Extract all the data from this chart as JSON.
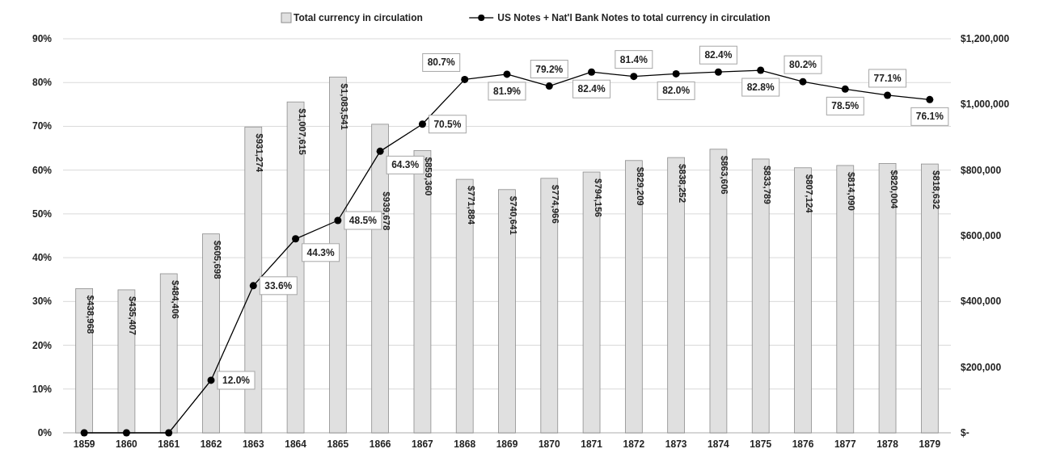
{
  "chart_data": {
    "type": "bar",
    "categories": [
      "1859",
      "1860",
      "1861",
      "1862",
      "1863",
      "1864",
      "1865",
      "1866",
      "1867",
      "1868",
      "1869",
      "1870",
      "1871",
      "1872",
      "1873",
      "1874",
      "1875",
      "1876",
      "1877",
      "1878",
      "1879"
    ],
    "series": [
      {
        "name": "Total currency in circulation",
        "axis": "y2",
        "color": "#e0e0e0",
        "values": [
          438968,
          435407,
          484406,
          605698,
          931274,
          1007615,
          1083541,
          939678,
          859360,
          771884,
          740641,
          774966,
          794156,
          829209,
          838252,
          863606,
          833789,
          807124,
          814090,
          820004,
          818632
        ],
        "value_labels": [
          "$438,968",
          "$435,407",
          "$484,406",
          "$605,698",
          "$931,274",
          "$1,007,615",
          "$1,083,541",
          "$939,678",
          "$859,360",
          "$771,884",
          "$740,641",
          "$774,966",
          "$794,156",
          "$829,209",
          "$838,252",
          "$863,606",
          "$833,789",
          "$807,124",
          "$814,090",
          "$820,004",
          "$818,632"
        ]
      },
      {
        "name": "US Notes + Nat'l Bank Notes to total currency in circulation",
        "type": "line",
        "axis": "y",
        "color": "#000000",
        "marker": "circle",
        "values": [
          0,
          0,
          0,
          12.0,
          33.6,
          44.3,
          48.5,
          64.3,
          70.5,
          80.7,
          81.9,
          79.2,
          82.4,
          81.4,
          82.0,
          82.4,
          82.8,
          80.2,
          78.5,
          77.1,
          76.1
        ],
        "value_labels": [
          null,
          null,
          null,
          "12.0%",
          "33.6%",
          "44.3%",
          "48.5%",
          "64.3%",
          "70.5%",
          "80.7%",
          "81.9%",
          "79.2%",
          "82.4%",
          "81.4%",
          "82.0%",
          "82.4%",
          "82.8%",
          "80.2%",
          "78.5%",
          "77.1%",
          "76.1%"
        ]
      }
    ],
    "ylim": [
      0,
      90
    ],
    "yticks": [
      {
        "value": 0,
        "label": "0%"
      },
      {
        "value": 10,
        "label": "10%"
      },
      {
        "value": 20,
        "label": "20%"
      },
      {
        "value": 30,
        "label": "30%"
      },
      {
        "value": 40,
        "label": "40%"
      },
      {
        "value": 50,
        "label": "50%"
      },
      {
        "value": 60,
        "label": "60%"
      },
      {
        "value": 70,
        "label": "70%"
      },
      {
        "value": 80,
        "label": "80%"
      },
      {
        "value": 90,
        "label": "90%"
      }
    ],
    "y2lim": [
      0,
      1200000
    ],
    "y2ticks": [
      {
        "value": 0,
        "label": "$-"
      },
      {
        "value": 200000,
        "label": "$200,000"
      },
      {
        "value": 400000,
        "label": "$400,000"
      },
      {
        "value": 600000,
        "label": "$600,000"
      },
      {
        "value": 800000,
        "label": "$800,000"
      },
      {
        "value": 1000000,
        "label": "$1,000,000"
      },
      {
        "value": 1200000,
        "label": "$1,200,000"
      }
    ],
    "grid": "y",
    "legend": "top"
  }
}
